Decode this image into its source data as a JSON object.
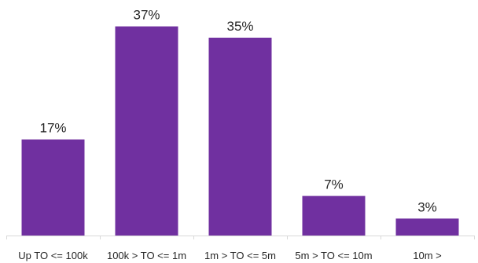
{
  "chart_data": {
    "type": "bar",
    "categories": [
      "Up TO <= 100k",
      "100k > TO <= 1m",
      "1m > TO <= 5m",
      "5m > TO <= 10m",
      "10m >"
    ],
    "values": [
      17,
      37,
      35,
      7,
      3
    ],
    "data_labels": [
      "17%",
      "37%",
      "35%",
      "7%",
      "3%"
    ],
    "unit": "%",
    "ylim": [
      0,
      40
    ],
    "grid": false,
    "legend": "none",
    "bar_color": "#7030A0",
    "axis_color": "#D9D9D9"
  }
}
